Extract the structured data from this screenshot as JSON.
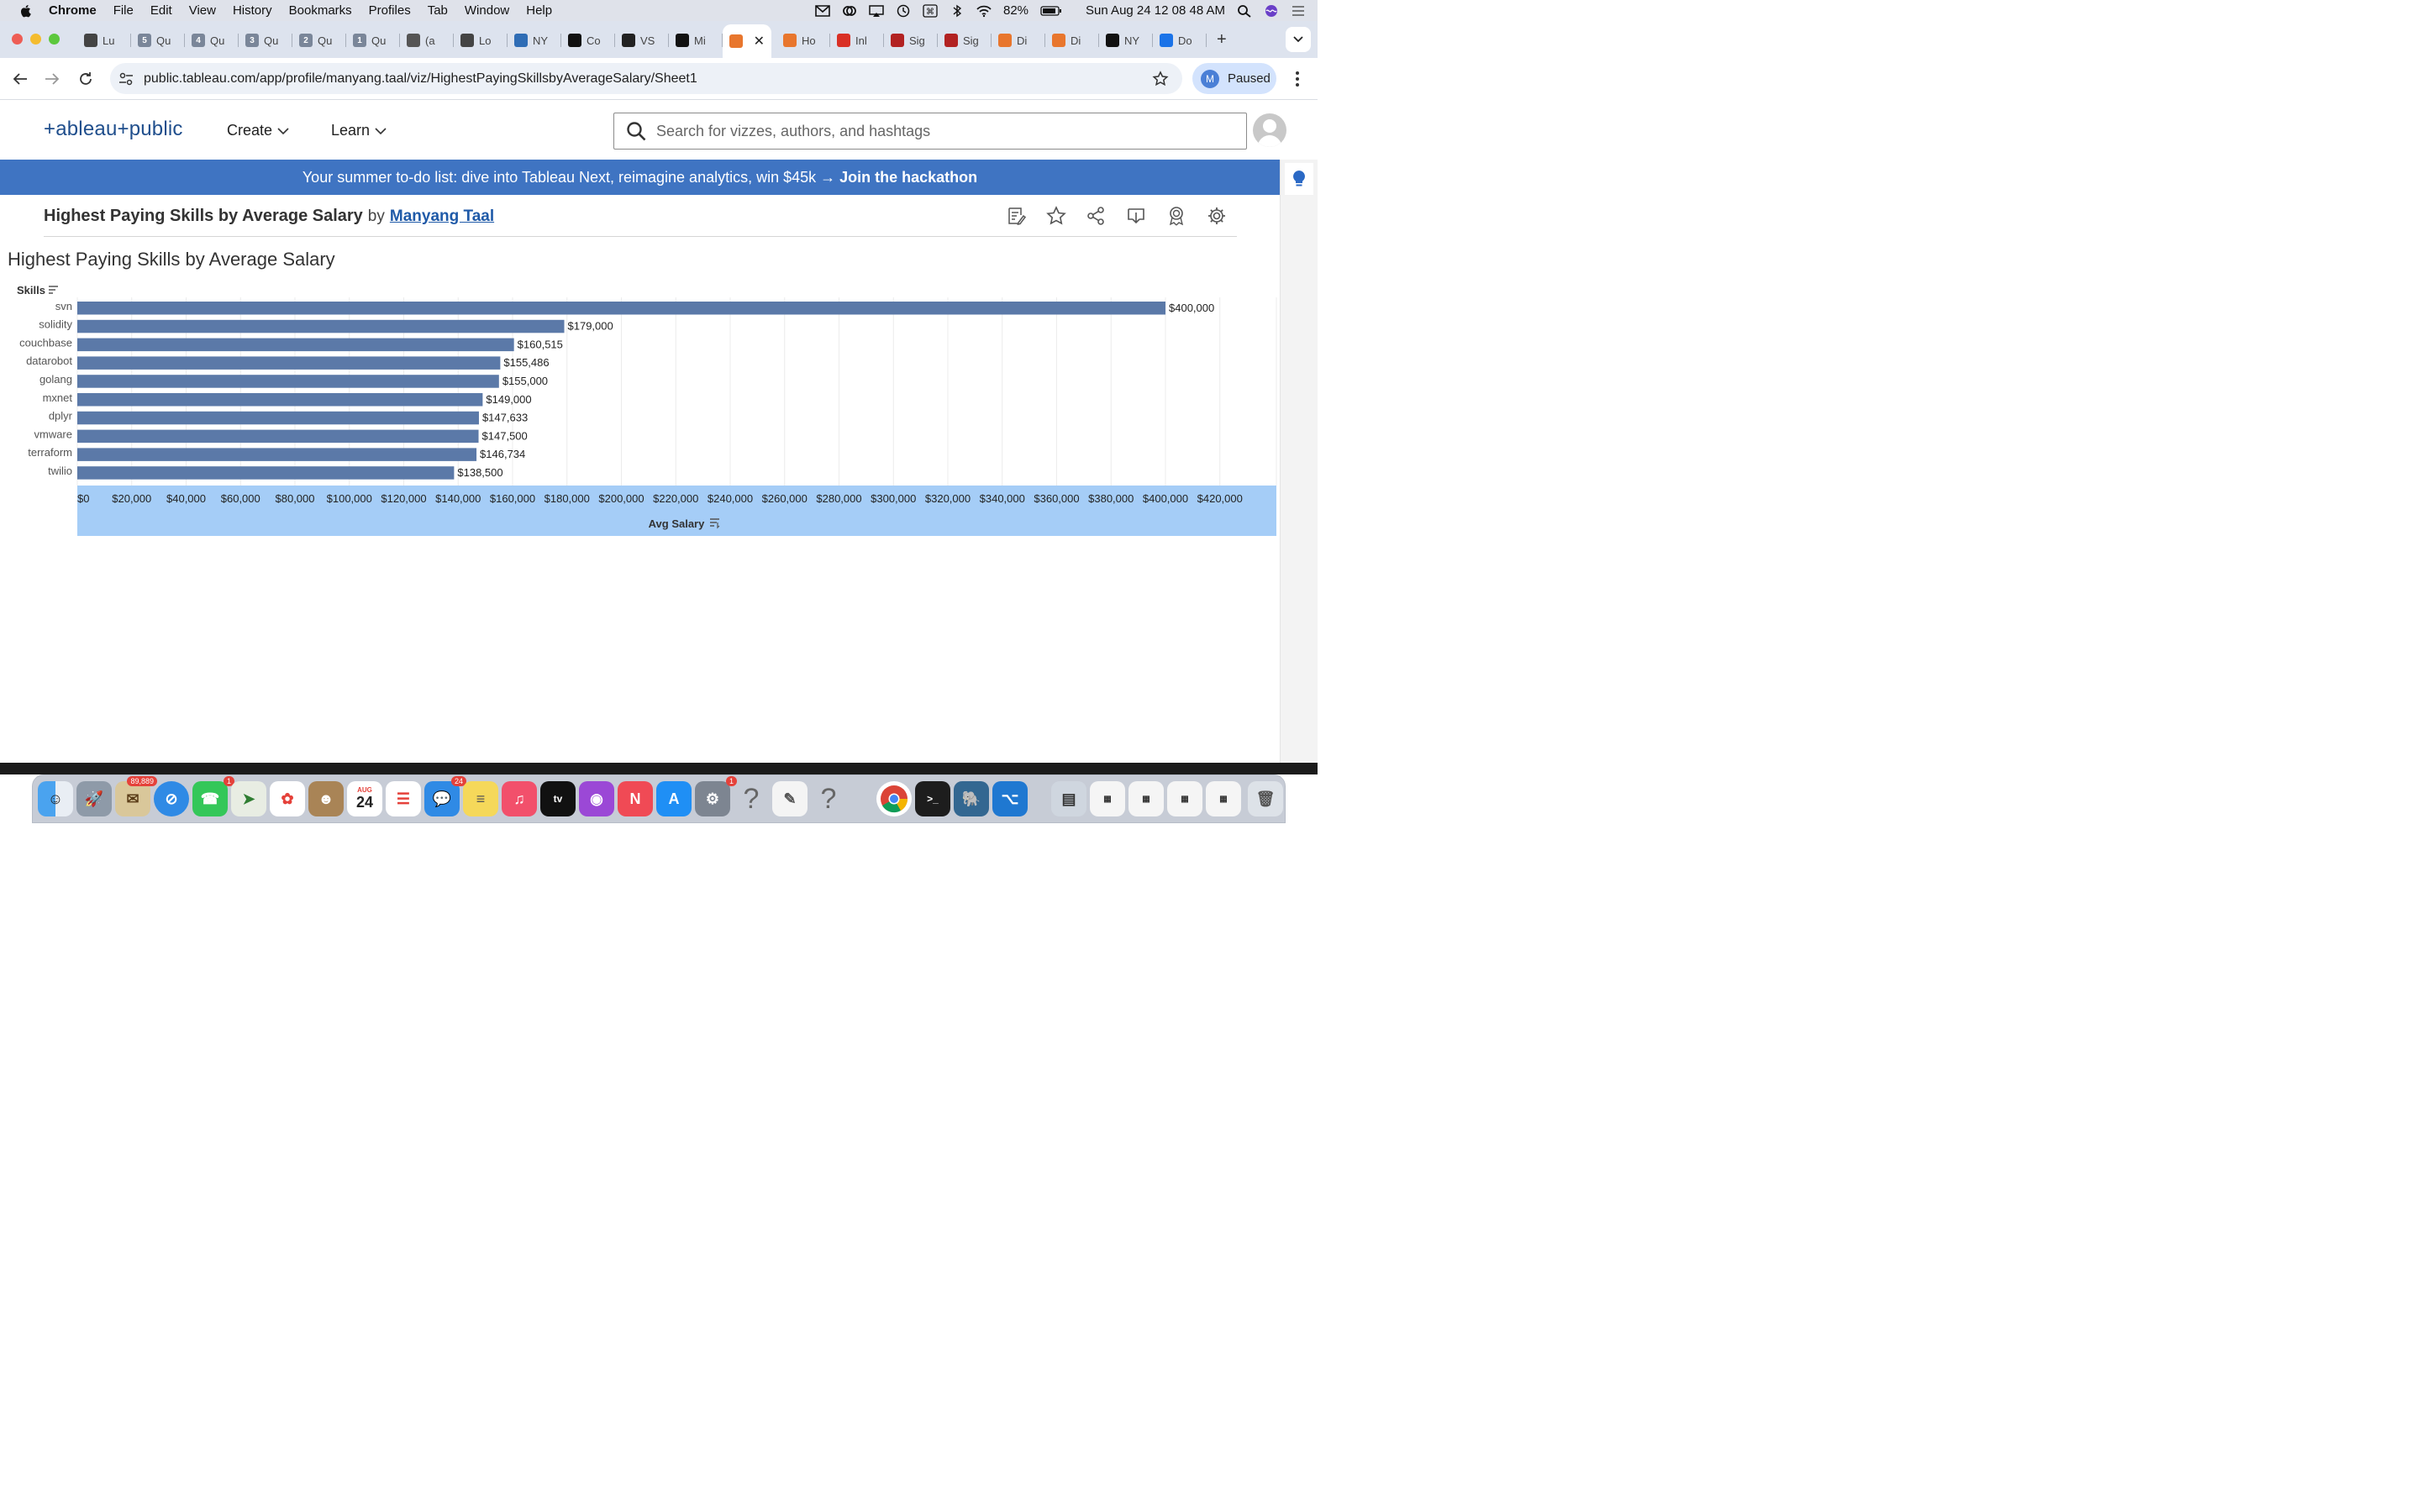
{
  "menubar": {
    "app": "Chrome",
    "items": [
      "File",
      "Edit",
      "View",
      "History",
      "Bookmarks",
      "Profiles",
      "Tab",
      "Window",
      "Help"
    ],
    "battery": "82%",
    "clock": "Sun Aug 24  12 08 48 AM"
  },
  "tabs": [
    {
      "label": "Lu",
      "icon": "person-icon",
      "color": "#444444"
    },
    {
      "label": "Qu",
      "icon": "tab-5-icon",
      "badge": "5",
      "color": "#7a8699"
    },
    {
      "label": "Qu",
      "icon": "tab-4-icon",
      "badge": "4",
      "color": "#7a8699"
    },
    {
      "label": "Qu",
      "icon": "tab-3-icon",
      "badge": "3",
      "color": "#7a8699"
    },
    {
      "label": "Qu",
      "icon": "tab-2-icon",
      "badge": "2",
      "color": "#7a8699"
    },
    {
      "label": "Qu",
      "icon": "tab-1-icon",
      "badge": "1",
      "color": "#7a8699"
    },
    {
      "label": "(a",
      "icon": "globe-icon",
      "color": "#555555"
    },
    {
      "label": "Lo",
      "icon": "doc-icon",
      "color": "#444444"
    },
    {
      "label": "NY",
      "icon": "nyc-icon",
      "color": "#2f6db5"
    },
    {
      "label": "Co",
      "icon": "github-icon",
      "color": "#111111"
    },
    {
      "label": "VS",
      "icon": "openai-icon",
      "color": "#222222"
    },
    {
      "label": "Mi",
      "icon": "github-icon",
      "color": "#111111"
    },
    {
      "label": "",
      "icon": "tableau-icon",
      "color": "#e8762d",
      "active": true
    },
    {
      "label": "Ho",
      "icon": "tableau-icon",
      "color": "#e8762d"
    },
    {
      "label": "Inl",
      "icon": "gmail-icon",
      "color": "#d93025"
    },
    {
      "label": "Sig",
      "icon": "state-icon",
      "color": "#b22222"
    },
    {
      "label": "Sig",
      "icon": "state-icon",
      "color": "#b22222"
    },
    {
      "label": "Di",
      "icon": "tableau-icon",
      "color": "#e8762d"
    },
    {
      "label": "Di",
      "icon": "tableau-icon",
      "color": "#e8762d"
    },
    {
      "label": "NY",
      "icon": "17-icon",
      "color": "#111111"
    },
    {
      "label": "Do",
      "icon": "download-icon",
      "color": "#1a73e8"
    }
  ],
  "address": {
    "url": "public.tableau.com/app/profile/manyang.taal/viz/HighestPayingSkillsbyAverageSalary/Sheet1"
  },
  "profile": {
    "initial": "M",
    "label": "Paused"
  },
  "tableau": {
    "logo": "+ableau+public",
    "nav": {
      "create": "Create",
      "learn": "Learn"
    },
    "search_placeholder": "Search for vizzes, authors, and hashtags",
    "banner_text": "Your summer to-do list: dive into Tableau Next, reimagine analytics, win $45k →",
    "banner_link": "Join the hackathon",
    "viz_title": "Highest Paying Skills by Average Salary",
    "by": "by",
    "author": "Manyang Taal"
  },
  "worksheet": {
    "title": "Highest Paying Skills by Average Salary",
    "row_header": "Skills"
  },
  "chart_data": {
    "type": "bar",
    "orientation": "horizontal",
    "categories": [
      "svn",
      "solidity",
      "couchbase",
      "datarobot",
      "golang",
      "mxnet",
      "dplyr",
      "vmware",
      "terraform",
      "twilio"
    ],
    "values": [
      400000,
      179000,
      160515,
      155486,
      155000,
      149000,
      147633,
      147500,
      146734,
      138500
    ],
    "value_labels": [
      "$400,000",
      "$179,000",
      "$160,515",
      "$155,486",
      "$155,000",
      "$149,000",
      "$147,633",
      "$147,500",
      "$146,734",
      "$138,500"
    ],
    "title": "Highest Paying Skills by Average Salary",
    "xlabel": "Avg Salary",
    "ylabel": "Skills",
    "xlim": [
      0,
      440000
    ],
    "x_ticks": [
      0,
      20000,
      40000,
      60000,
      80000,
      100000,
      120000,
      140000,
      160000,
      180000,
      200000,
      220000,
      240000,
      260000,
      280000,
      300000,
      320000,
      340000,
      360000,
      380000,
      400000,
      420000
    ],
    "x_tick_labels": [
      "$0",
      "$20,000",
      "$40,000",
      "$60,000",
      "$80,000",
      "$100,000",
      "$120,000",
      "$140,000",
      "$160,000",
      "$180,000",
      "$200,000",
      "$220,000",
      "$240,000",
      "$260,000",
      "$280,000",
      "$300,000",
      "$320,000",
      "$340,000",
      "$360,000",
      "$380,000",
      "$400,000",
      "$420,000"
    ],
    "grid": true,
    "bar_color": "#5b79a8",
    "axis_band_color": "#a5cdf7"
  },
  "dock": {
    "mail_badge": "89,889",
    "facetime_badge": "1",
    "messages_badge": "24",
    "settings_badge": "1",
    "calendar_month": "AUG",
    "calendar_day": "24"
  }
}
